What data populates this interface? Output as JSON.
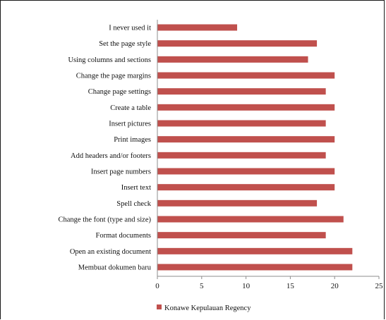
{
  "chart_data": {
    "type": "bar",
    "orientation": "horizontal",
    "categories": [
      "I never used it",
      "Set the page style",
      "Using columns and sections",
      "Change the page margins",
      "Change page settings",
      "Create a table",
      "Insert pictures",
      "Print images",
      "Add headers and/or footers",
      "Insert page numbers",
      "Insert text",
      "Spell check",
      "Change the font (type and size)",
      "Format documents",
      "Open an existing document",
      "Membuat dokumen baru"
    ],
    "series": [
      {
        "name": "Konawe Kepulauan Regency",
        "color": "#c0504d",
        "values": [
          9,
          18,
          17,
          20,
          19,
          20,
          19,
          20,
          19,
          20,
          20,
          18,
          21,
          19,
          22,
          22
        ]
      }
    ],
    "xlim": [
      0,
      25
    ],
    "xticks": [
      "0",
      "5",
      "10",
      "15",
      "20",
      "25"
    ],
    "grid": false,
    "legend_position": "bottom-left"
  }
}
